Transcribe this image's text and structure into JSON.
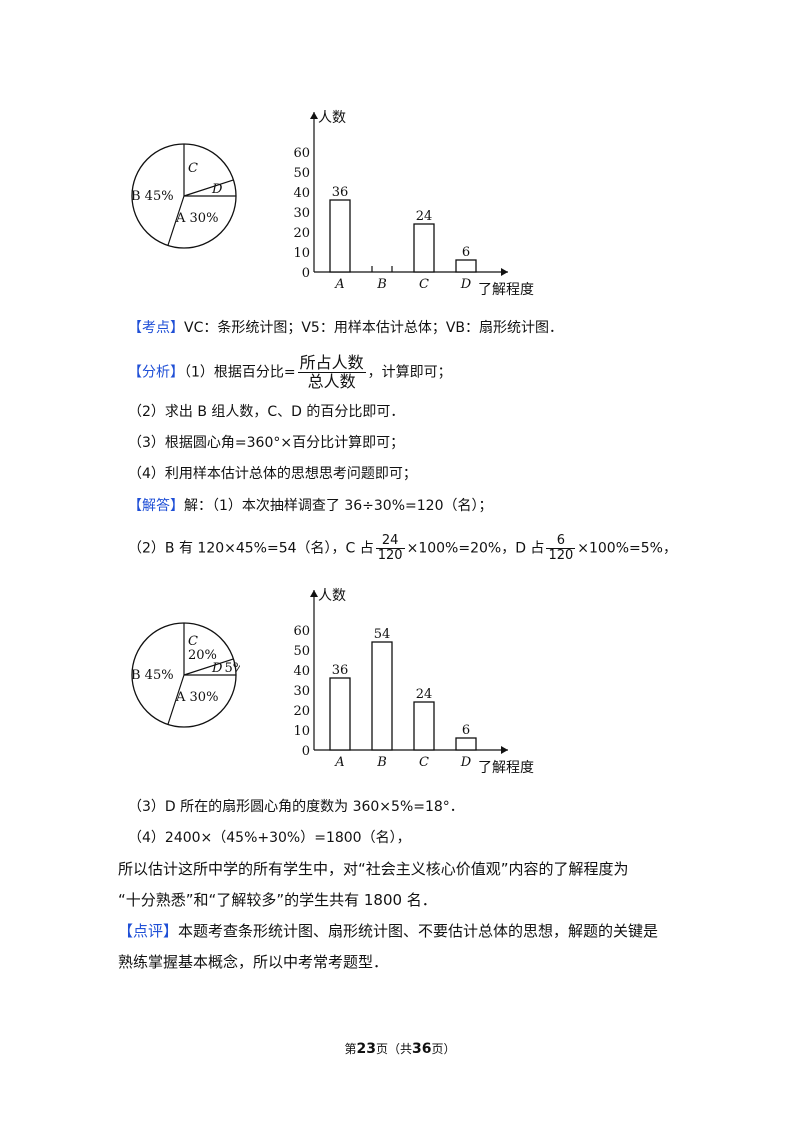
{
  "chart_data": [
    {
      "type": "pie",
      "labels": [
        "A",
        "B",
        "C",
        "D"
      ],
      "slice_labels": [
        "A 30%",
        "B 45%",
        "C",
        "D"
      ],
      "values": [
        30,
        45,
        20,
        5
      ]
    },
    {
      "type": "bar",
      "categories": [
        "A",
        "B",
        "C",
        "D"
      ],
      "values": [
        36,
        0,
        24,
        6
      ],
      "value_labels": [
        "36",
        "",
        "24",
        "6"
      ],
      "ylabel": "人数",
      "xlabel": "了解程度",
      "yticks": [
        "0",
        "10",
        "20",
        "30",
        "40",
        "50",
        "60"
      ],
      "ylim": [
        0,
        60
      ]
    },
    {
      "type": "pie",
      "labels": [
        "A",
        "B",
        "C",
        "D"
      ],
      "slice_labels": [
        "A 30%",
        "B 45%",
        "C 20%",
        "D 5%"
      ],
      "values": [
        30,
        45,
        20,
        5
      ]
    },
    {
      "type": "bar",
      "categories": [
        "A",
        "B",
        "C",
        "D"
      ],
      "values": [
        36,
        54,
        24,
        6
      ],
      "value_labels": [
        "36",
        "54",
        "24",
        "6"
      ],
      "ylabel": "人数",
      "xlabel": "了解程度",
      "yticks": [
        "0",
        "10",
        "20",
        "30",
        "40",
        "50",
        "60"
      ],
      "ylim": [
        0,
        60
      ]
    }
  ],
  "text": {
    "kaodian_tag": "【考点】",
    "kaodian": "VC：条形统计图；V5：用样本估计总体；VB：扇形统计图．",
    "fenxi_tag": "【分析】",
    "fenxi_pre": "（1）根据百分比=",
    "fenxi_num": "所占人数",
    "fenxi_den": "总人数",
    "fenxi_post": "，计算即可；",
    "line2": "（2）求出 B 组人数，C、D 的百分比即可．",
    "line3": "（3）根据圆心角=360°×百分比计算即可；",
    "line4": "（4）利用样本估计总体的思想思考问题即可；",
    "jieda_tag": "【解答】",
    "jieda": "解：（1）本次抽样调查了 36÷30%=120（名）；",
    "ans2_a": "（2）B 有 120×45%=54（名），C 占",
    "ans2_f1_num": "24",
    "ans2_f1_den": "120",
    "ans2_b": "×100%=20%，D 占",
    "ans2_f2_num": "6",
    "ans2_f2_den": "120",
    "ans2_c": "×100%=5%，",
    "ans3": "（3）D 所在的扇形圆心角的度数为 360×5%=18°．",
    "ans4": "（4）2400×（45%+30%）=1800（名），",
    "concl1": "所以估计这所中学的所有学生中，对“社会主义核心价值观”内容的了解程度为",
    "concl2": "“十分熟悉”和“了解较多”的学生共有 1800 名．",
    "dianping_tag": "【点评】",
    "dianping1": "本题考查条形统计图、扇形统计图、不要估计总体的思想，解题的关键是",
    "dianping2": "熟练掌握基本概念，所以中考常考题型．"
  },
  "footer": {
    "pre": "第",
    "page": "23",
    "mid": "页（共",
    "total": "36",
    "post": "页）"
  }
}
